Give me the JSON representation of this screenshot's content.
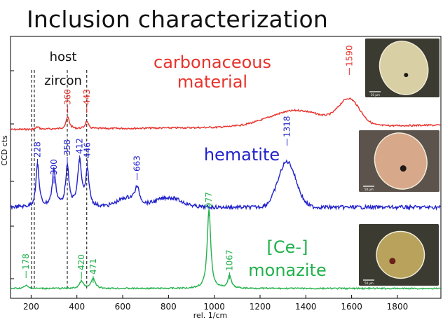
{
  "title": "Inclusion characterization",
  "chart_data": {
    "type": "line",
    "xlabel": "rel. 1/cm",
    "ylabel": "CCD cts",
    "xlim": [
      110,
      1990
    ],
    "x_ticks": [
      200,
      400,
      600,
      800,
      1000,
      1200,
      1400,
      1600,
      1800
    ],
    "grid": false,
    "series": [
      {
        "name": "carbonaceous material",
        "color": "#e8322c",
        "baseline": 0.0,
        "label_lines": [
          "carbonaceous",
          "material"
        ],
        "broad_bands": [
          {
            "center": 1360,
            "width": 170,
            "height": 0.55
          },
          {
            "center": 1590,
            "width": 65,
            "height": 0.85
          }
        ],
        "peaks": [
          {
            "x": 228,
            "height": 0.08,
            "width": 8
          },
          {
            "x": 360,
            "height": 0.4,
            "width": 9
          },
          {
            "x": 443,
            "height": 0.25,
            "width": 8
          }
        ],
        "peak_labels": [
          "360",
          "443",
          "1590"
        ],
        "peak_label_x": [
          360,
          443,
          1590
        ]
      },
      {
        "name": "hematite",
        "color": "#2222cc",
        "baseline": 0.0,
        "label_lines": [
          "hematite"
        ],
        "broad_bands": [
          {
            "center": 1318,
            "width": 55,
            "height": 1.05
          },
          {
            "center": 800,
            "width": 80,
            "height": 0.22
          },
          {
            "center": 620,
            "width": 60,
            "height": 0.2
          }
        ],
        "peaks": [
          {
            "x": 228,
            "height": 1.0,
            "width": 8
          },
          {
            "x": 300,
            "height": 0.85,
            "width": 9
          },
          {
            "x": 358,
            "height": 0.9,
            "width": 9
          },
          {
            "x": 412,
            "height": 1.05,
            "width": 10
          },
          {
            "x": 446,
            "height": 0.8,
            "width": 9
          },
          {
            "x": 663,
            "height": 0.35,
            "width": 12
          }
        ],
        "peak_labels": [
          "228",
          "300",
          "358",
          "412",
          "446",
          "663",
          "1318"
        ],
        "peak_label_x": [
          228,
          300,
          358,
          412,
          446,
          663,
          1318
        ]
      },
      {
        "name": "[Ce-] monazite",
        "color": "#22b14c",
        "baseline": 0.0,
        "label_lines": [
          "[Ce-]",
          "monazite"
        ],
        "broad_bands": [],
        "peaks": [
          {
            "x": 178,
            "height": 0.08,
            "width": 10
          },
          {
            "x": 420,
            "height": 0.2,
            "width": 10
          },
          {
            "x": 471,
            "height": 0.28,
            "width": 10
          },
          {
            "x": 977,
            "height": 2.2,
            "width": 9
          },
          {
            "x": 1067,
            "height": 0.35,
            "width": 9
          }
        ],
        "peak_labels": [
          "178",
          "420",
          "471",
          "977",
          "1067"
        ],
        "peak_label_x": [
          178,
          420,
          471,
          977,
          1067
        ]
      }
    ],
    "reference_lines": {
      "label_lines": [
        "host",
        "zircon"
      ],
      "x": [
        202,
        214,
        358,
        443
      ]
    }
  },
  "thumbnails": [
    {
      "name": "carbonaceous-inclusion-photo",
      "scale_label": "50 μm",
      "tone": "#d8cfa4"
    },
    {
      "name": "hematite-inclusion-photo",
      "scale_label": "50 μm",
      "tone": "#d8a88a"
    },
    {
      "name": "monazite-inclusion-photo",
      "scale_label": "50 μm",
      "tone": "#b8a25c"
    }
  ]
}
